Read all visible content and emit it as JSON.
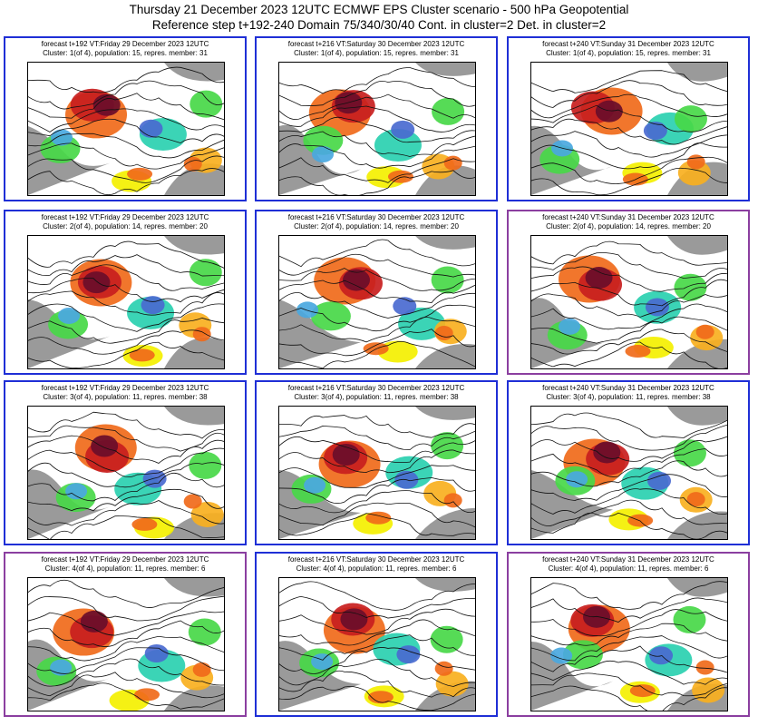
{
  "header": {
    "line1": "Thursday 21 December 2023 12UTC ECMWF EPS Cluster scenario - 500 hPa Geopotential",
    "line2": "Reference step t+192-240 Domain 75/340/30/40 Cont. in cluster=2 Det. in cluster=2"
  },
  "colors": {
    "border_blue": "#1f2fd6",
    "border_purple": "#8b3fa0",
    "anomaly_scale": [
      "#6a0d2a",
      "#c81e1e",
      "#f06a1a",
      "#f8b020",
      "#f4f000",
      "#ffffff",
      "#48d848",
      "#2ad0b0",
      "#4aa8e0",
      "#4a6ad0",
      "#2a2ab0"
    ],
    "land": "#9a9a9a"
  },
  "panels": [
    {
      "row": 0,
      "col": 0,
      "title1": "forecast t+192 VT:Friday 29 December 2023 12UTC",
      "title2": "Cluster: 1(of 4), population: 15, repres. member: 31",
      "border": "blue"
    },
    {
      "row": 0,
      "col": 1,
      "title1": "forecast t+216 VT:Saturday 30 December 2023 12UTC",
      "title2": "Cluster: 1(of 4), population: 15, repres. member: 31",
      "border": "blue"
    },
    {
      "row": 0,
      "col": 2,
      "title1": "forecast t+240 VT:Sunday 31 December 2023 12UTC",
      "title2": "Cluster: 1(of 4), population: 15, repres. member: 31",
      "border": "blue"
    },
    {
      "row": 1,
      "col": 0,
      "title1": "forecast t+192 VT:Friday 29 December 2023 12UTC",
      "title2": "Cluster: 2(of 4), population: 14, repres. member: 20",
      "border": "blue"
    },
    {
      "row": 1,
      "col": 1,
      "title1": "forecast t+216 VT:Saturday 30 December 2023 12UTC",
      "title2": "Cluster: 2(of 4), population: 14, repres. member: 20",
      "border": "blue"
    },
    {
      "row": 1,
      "col": 2,
      "title1": "forecast t+240 VT:Sunday 31 December 2023 12UTC",
      "title2": "Cluster: 2(of 4), population: 14, repres. member: 20",
      "border": "purple"
    },
    {
      "row": 2,
      "col": 0,
      "title1": "forecast t+192 VT:Friday 29 December 2023 12UTC",
      "title2": "Cluster: 3(of 4), population: 11, repres. member: 38",
      "border": "blue"
    },
    {
      "row": 2,
      "col": 1,
      "title1": "forecast t+216 VT:Saturday 30 December 2023 12UTC",
      "title2": "Cluster: 3(of 4), population: 11, repres. member: 38",
      "border": "blue"
    },
    {
      "row": 2,
      "col": 2,
      "title1": "forecast t+240 VT:Sunday 31 December 2023 12UTC",
      "title2": "Cluster: 3(of 4), population: 11, repres. member: 38",
      "border": "blue"
    },
    {
      "row": 3,
      "col": 0,
      "title1": "forecast t+192 VT:Friday 29 December 2023 12UTC",
      "title2": "Cluster: 4(of 4), population: 11, repres. member: 6",
      "border": "purple"
    },
    {
      "row": 3,
      "col": 1,
      "title1": "forecast t+216 VT:Saturday 30 December 2023 12UTC",
      "title2": "Cluster: 4(of 4), population: 11, repres. member: 6",
      "border": "blue"
    },
    {
      "row": 3,
      "col": 2,
      "title1": "forecast t+240 VT:Sunday 31 December 2023 12UTC",
      "title2": "Cluster: 4(of 4), population: 11, repres. member: 6",
      "border": "purple"
    }
  ]
}
